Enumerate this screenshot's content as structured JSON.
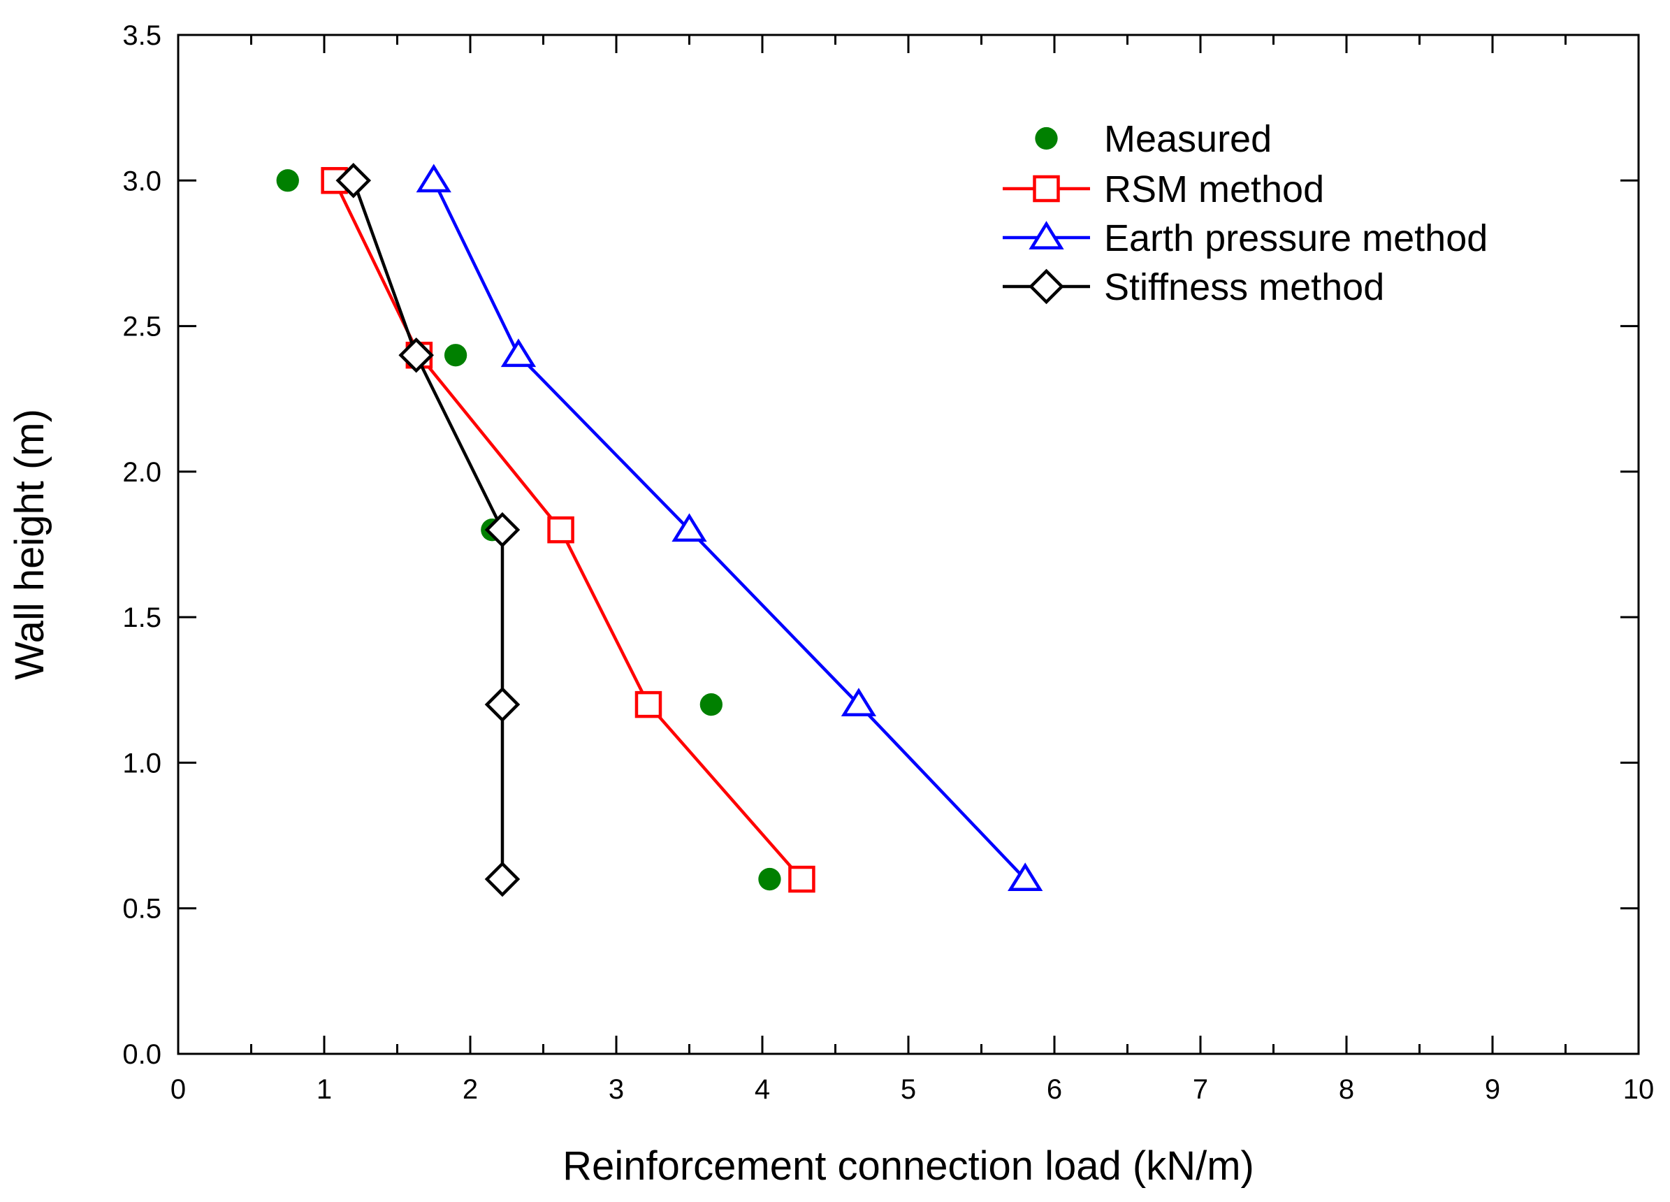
{
  "chart_data": {
    "type": "scatter",
    "title": "",
    "xlabel": "Reinforcement connection load (kN/m)",
    "ylabel": "Wall height (m)",
    "xlim": [
      0,
      10
    ],
    "ylim": [
      0,
      3.5
    ],
    "x_ticks": [
      "0",
      "1",
      "2",
      "3",
      "4",
      "5",
      "6",
      "7",
      "8",
      "9",
      "10"
    ],
    "y_ticks": [
      "0.0",
      "0.5",
      "1.0",
      "1.5",
      "2.0",
      "2.5",
      "3.0",
      "3.5"
    ],
    "grid": false,
    "legend_position": "top-right",
    "series": [
      {
        "name": "Measured",
        "marker": "circle",
        "line": false,
        "color": "#008000",
        "points": [
          [
            0.75,
            3.0
          ],
          [
            1.9,
            2.4
          ],
          [
            2.15,
            1.8
          ],
          [
            3.65,
            1.2
          ],
          [
            4.05,
            0.6
          ]
        ]
      },
      {
        "name": "RSM method",
        "marker": "square",
        "line": true,
        "color": "#ff0000",
        "points": [
          [
            1.07,
            3.0
          ],
          [
            1.65,
            2.4
          ],
          [
            2.62,
            1.8
          ],
          [
            3.22,
            1.2
          ],
          [
            4.27,
            0.6
          ]
        ]
      },
      {
        "name": "Earth pressure method",
        "marker": "triangle",
        "line": true,
        "color": "#0000ff",
        "points": [
          [
            1.75,
            3.0
          ],
          [
            2.33,
            2.4
          ],
          [
            3.5,
            1.8
          ],
          [
            4.66,
            1.2
          ],
          [
            5.8,
            0.6
          ]
        ]
      },
      {
        "name": "Stiffness method",
        "marker": "diamond",
        "line": true,
        "color": "#000000",
        "points": [
          [
            1.2,
            3.0
          ],
          [
            1.63,
            2.4
          ],
          [
            2.22,
            1.8
          ],
          [
            2.22,
            1.2
          ],
          [
            2.22,
            0.6
          ]
        ]
      }
    ]
  }
}
